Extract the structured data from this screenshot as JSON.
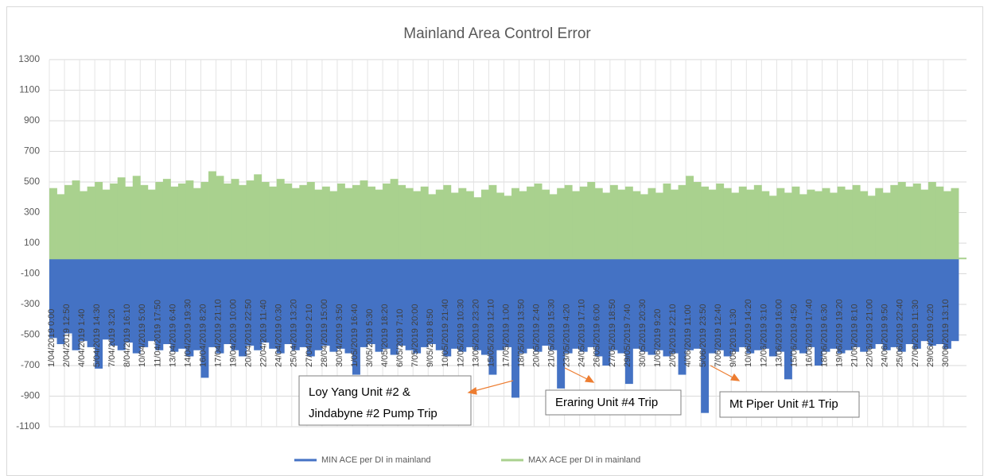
{
  "chart_data": {
    "type": "bar",
    "title": "Mainland Area Control Error",
    "ylim": [
      -1100,
      1300
    ],
    "yticks": [
      -1100,
      -900,
      -700,
      -500,
      -300,
      -100,
      100,
      300,
      500,
      700,
      900,
      1100,
      1300
    ],
    "grid": true,
    "legend": "bottom",
    "categories": [
      "1/04/2019 0:00",
      null,
      "2/04/2019 12:50",
      null,
      "4/04/2019 1:40",
      null,
      "5/04/2019 14:30",
      null,
      "7/04/2019 3:20",
      null,
      "8/04/2019 16:10",
      null,
      "10/04/2019 5:00",
      null,
      "11/04/2019 17:50",
      null,
      "13/04/2019 6:40",
      null,
      "14/04/2019 19:30",
      null,
      "16/04/2019 8:20",
      null,
      "17/04/2019 21:10",
      null,
      "19/04/2019 10:00",
      null,
      "20/04/2019 22:50",
      null,
      "22/04/2019 11:40",
      null,
      "24/04/2019 0:30",
      null,
      "25/04/2019 13:20",
      null,
      "27/04/2019 2:10",
      null,
      "28/04/2019 15:00",
      null,
      "30/04/2019 3:50",
      null,
      "1/05/2019 16:40",
      null,
      "3/05/2019 5:30",
      null,
      "4/05/2019 18:20",
      null,
      "6/05/2019 7:10",
      null,
      "7/05/2019 20:00",
      null,
      "9/05/2019 8:50",
      null,
      "10/05/2019 21:40",
      null,
      "12/05/2019 10:30",
      null,
      "13/05/2019 23:20",
      null,
      "15/05/2019 12:10",
      null,
      "17/05/2019 1:00",
      null,
      "18/05/2019 13:50",
      null,
      "20/05/2019 2:40",
      null,
      "21/05/2019 15:30",
      null,
      "23/05/2019 4:20",
      null,
      "24/05/2019 17:10",
      null,
      "26/05/2019 6:00",
      null,
      "27/05/2019 18:50",
      null,
      "29/05/2019 7:40",
      null,
      "30/05/2019 20:30",
      null,
      "1/06/2019 9:20",
      null,
      "2/06/2019 22:10",
      null,
      "4/06/2019 11:00",
      null,
      "5/06/2019 23:50",
      null,
      "7/06/2019 12:40",
      null,
      "9/06/2019 1:30",
      null,
      "10/06/2019 14:20",
      null,
      "12/06/2019 3:10",
      null,
      "13/06/2019 16:00",
      null,
      "15/06/2019 4:50",
      null,
      "16/06/2019 17:40",
      null,
      "18/06/2019 6:30",
      null,
      "19/06/2019 19:20",
      null,
      "21/06/2019 8:10",
      null,
      "22/06/2019 21:00",
      null,
      "24/06/2019 9:50",
      null,
      "25/06/2019 22:40",
      null,
      "27/06/2019 11:30",
      null,
      "29/06/2019 0:20",
      null,
      "30/06/2019 13:10",
      null
    ],
    "series": [
      {
        "name": "MAX ACE per DI in mainland",
        "color": "#a9d18e",
        "values": [
          460,
          420,
          480,
          510,
          440,
          470,
          500,
          450,
          490,
          530,
          470,
          540,
          480,
          450,
          500,
          520,
          470,
          490,
          510,
          460,
          500,
          570,
          540,
          490,
          520,
          480,
          510,
          550,
          500,
          470,
          520,
          490,
          460,
          480,
          500,
          450,
          470,
          440,
          490,
          460,
          480,
          510,
          470,
          450,
          490,
          520,
          480,
          460,
          440,
          470,
          420,
          450,
          480,
          430,
          460,
          440,
          400,
          450,
          480,
          430,
          410,
          460,
          440,
          470,
          490,
          450,
          420,
          460,
          480,
          440,
          470,
          500,
          460,
          430,
          480,
          450,
          470,
          440,
          420,
          460,
          430,
          490,
          450,
          480,
          540,
          500,
          470,
          450,
          490,
          460,
          430,
          470,
          450,
          480,
          440,
          410,
          460,
          430,
          470,
          420,
          450,
          440,
          460,
          430,
          470,
          450,
          480,
          440,
          410,
          460,
          430,
          480,
          500,
          470,
          490,
          450,
          500,
          470,
          440,
          460
        ]
      },
      {
        "name": "MIN ACE per DI in mainland",
        "color": "#4472c4",
        "values": [
          -520,
          -560,
          -490,
          -600,
          -540,
          -580,
          -720,
          -530,
          -570,
          -600,
          -550,
          -620,
          -580,
          -540,
          -600,
          -560,
          -610,
          -590,
          -640,
          -600,
          -780,
          -580,
          -620,
          -560,
          -600,
          -640,
          -570,
          -600,
          -550,
          -590,
          -620,
          -560,
          -600,
          -580,
          -640,
          -600,
          -570,
          -610,
          -590,
          -620,
          -760,
          -580,
          -560,
          -610,
          -590,
          -630,
          -570,
          -600,
          -620,
          -580,
          -560,
          -600,
          -640,
          -590,
          -610,
          -580,
          -600,
          -630,
          -760,
          -600,
          -580,
          -910,
          -620,
          -590,
          -610,
          -570,
          -600,
          -850,
          -620,
          -590,
          -610,
          -580,
          -640,
          -700,
          -600,
          -620,
          -820,
          -590,
          -610,
          -630,
          -600,
          -640,
          -620,
          -760,
          -600,
          -590,
          -1010,
          -620,
          -600,
          -640,
          -610,
          -580,
          -620,
          -600,
          -590,
          -640,
          -610,
          -790,
          -600,
          -620,
          -580,
          -700,
          -610,
          -590,
          -620,
          -600,
          -580,
          -610,
          -590,
          -560,
          -600,
          -580,
          -610,
          -560,
          -590,
          -540,
          -570,
          -560,
          -590,
          -540
        ]
      }
    ],
    "annotations": [
      [
        "Loy Yang Unit #2 &",
        "Jindabyne #2 Pump Trip"
      ],
      [
        "Eraring Unit #4 Trip"
      ],
      [
        "Mt Piper Unit #1 Trip"
      ]
    ]
  }
}
